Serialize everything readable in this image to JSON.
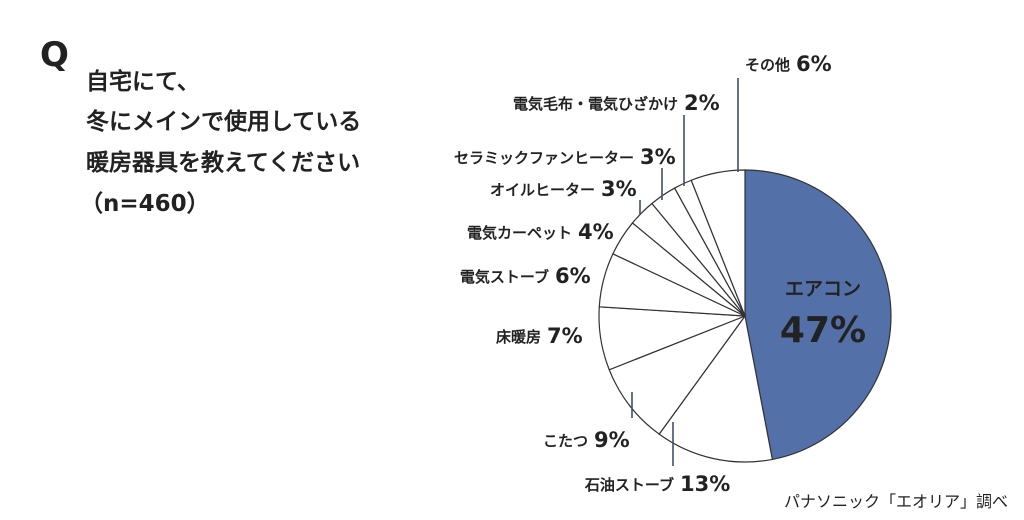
{
  "question": {
    "letter": "Q",
    "lines": [
      "自宅にて、",
      "冬にメインで使用している",
      "暖房器具を教えてください",
      "（n=460）"
    ]
  },
  "source": "パナソニック「エオリア」調べ",
  "colors": {
    "primary": "#5371a8",
    "other": "#ffffff",
    "stroke": "#333333",
    "leader": "#3f4f6f"
  },
  "chart_data": {
    "type": "pie",
    "categories": [
      "エアコン",
      "石油ストーブ",
      "こたつ",
      "床暖房",
      "電気ストーブ",
      "電気カーペット",
      "オイルヒーター",
      "セラミックファンヒーター",
      "電気毛布・電気ひざかけ",
      "その他"
    ],
    "values": [
      47,
      13,
      9,
      7,
      6,
      4,
      3,
      3,
      2,
      6
    ],
    "value_labels": [
      "47%",
      "13%",
      "9%",
      "7%",
      "6%",
      "4%",
      "3%",
      "3%",
      "2%",
      "6%"
    ],
    "start": "12 o'clock",
    "direction": "clockwise"
  }
}
